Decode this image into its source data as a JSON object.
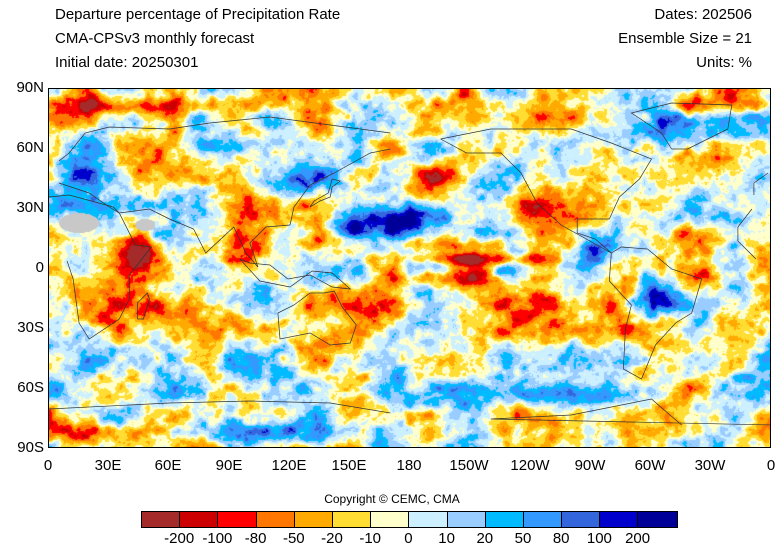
{
  "header": {
    "title": "Departure percentage of Precipitation Rate",
    "model": "CMA-CPSv3 monthly forecast",
    "initial_date": "Initial date: 20250301",
    "dates": "Dates: 202506",
    "ensemble": "Ensemble Size = 21",
    "units": "Units: %"
  },
  "map": {
    "projection": "equirectangular",
    "lon_range": [
      0,
      360
    ],
    "lat_range": [
      -90,
      90
    ],
    "lat_ticks": [
      "90N",
      "60N",
      "30N",
      "0",
      "30S",
      "60S",
      "90S"
    ],
    "lon_ticks": [
      "0",
      "30E",
      "60E",
      "90E",
      "120E",
      "150E",
      "180",
      "150W",
      "120W",
      "90W",
      "60W",
      "30W",
      "0"
    ],
    "missing_color": "#c8c8c8",
    "coastline_color": "#333333"
  },
  "colorbar": {
    "colors": [
      "#a52a2a",
      "#cc0000",
      "#ff0000",
      "#ff7700",
      "#ffaa00",
      "#ffdd33",
      "#ffffcc",
      "#ccf0ff",
      "#99ccff",
      "#00bbff",
      "#3399ff",
      "#3366dd",
      "#0000cc",
      "#000099"
    ],
    "labels": [
      "-200",
      "-100",
      "-80",
      "-50",
      "-20",
      "-10",
      "0",
      "10",
      "20",
      "50",
      "80",
      "100",
      "200"
    ]
  },
  "copyright": "Copyright © CEMC, CMA"
}
